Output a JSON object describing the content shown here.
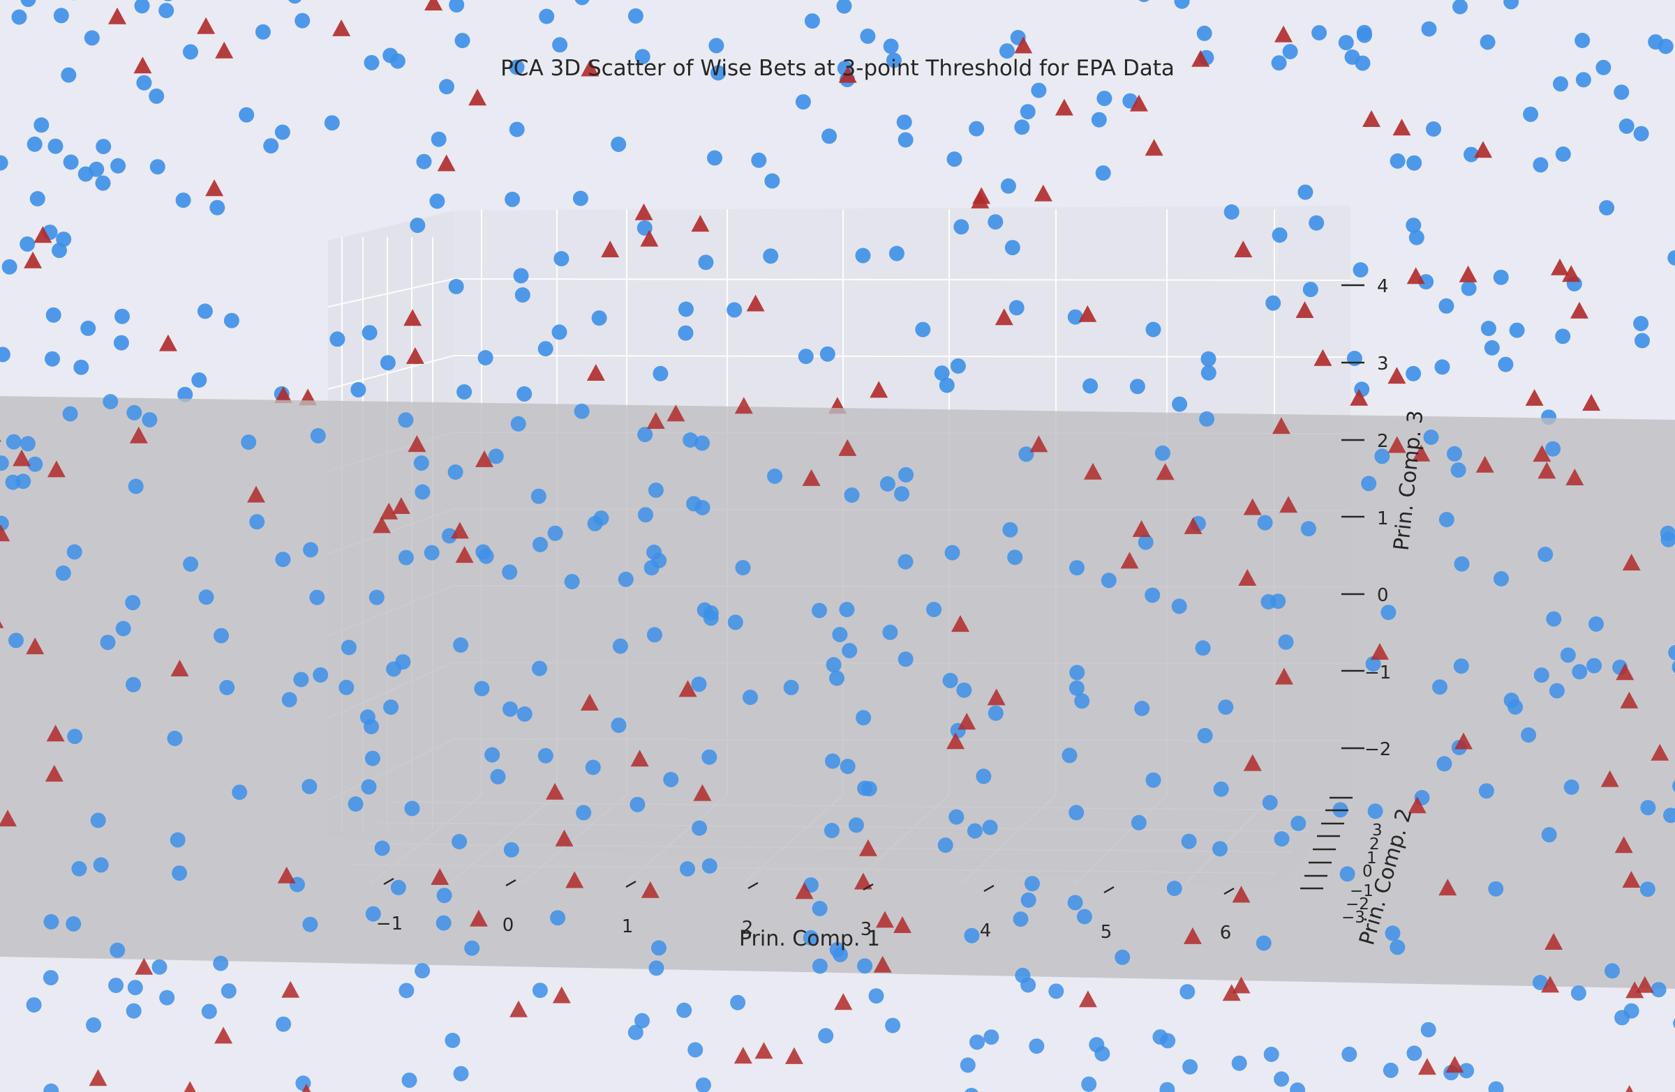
{
  "chart_data": {
    "type": "scatter",
    "projection": "3d",
    "title": "PCA 3D Scatter of Wise Bets at 3-point Threshold for EPA Data",
    "xlabel": "Prin. Comp. 1",
    "ylabel": "Prin. Comp. 2",
    "zlabel": "Prin. Comp. 3",
    "x_ticks": [
      "−1",
      "0",
      "1",
      "2",
      "3",
      "4",
      "5",
      "6"
    ],
    "y_ticks": [
      "−3",
      "−2",
      "−1",
      "0",
      "1",
      "2",
      "3"
    ],
    "z_ticks": [
      "−2",
      "−1",
      "0",
      "1",
      "2",
      "3",
      "4"
    ],
    "xlim": [
      -1.7,
      6.8
    ],
    "ylim": [
      -3.5,
      3.5
    ],
    "zlim": [
      -2.7,
      4.8
    ],
    "decision_surface": true,
    "grid": true,
    "colors": {
      "background": "#EAEAF2",
      "plane": "#C4C4C8",
      "circle": "#3D8FE8",
      "triangle": "#B02A2A",
      "grid": "#FFFFFF"
    },
    "series": [
      {
        "marker": "circle",
        "color": "#3D8FE8",
        "count": 520,
        "seed": 11
      },
      {
        "marker": "triangle",
        "color": "#B02A2A",
        "count": 150,
        "seed": 29
      }
    ]
  }
}
